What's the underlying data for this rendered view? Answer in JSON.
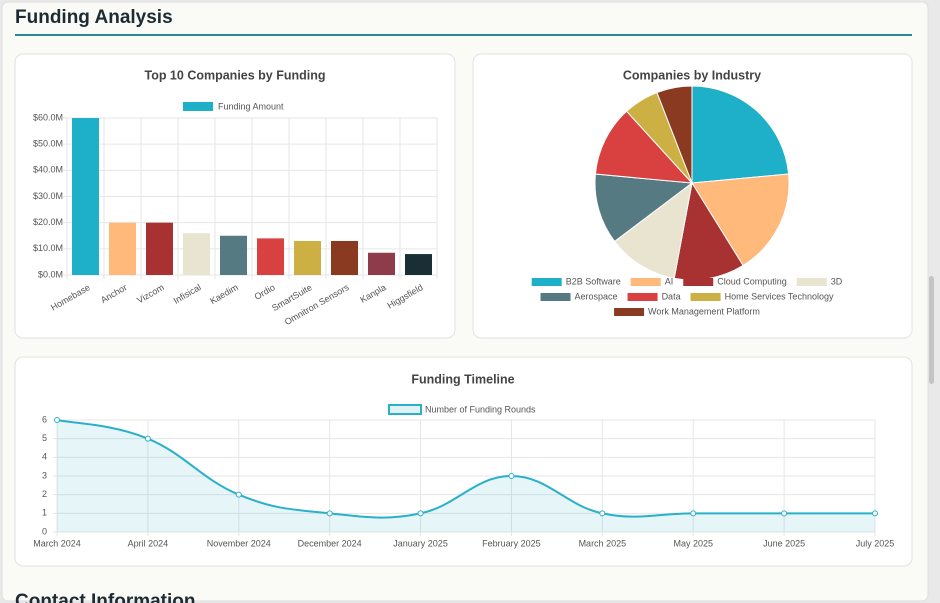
{
  "header": {
    "title": "Funding Analysis"
  },
  "chart_data": [
    {
      "type": "bar",
      "title": "Top 10 Companies by Funding",
      "categories": [
        "Homebase",
        "Anchor",
        "Vizcom",
        "Infisical",
        "Kaedim",
        "Ordio",
        "SmartSuite",
        "Omnitron Sensors",
        "Kanpla",
        "Higgsfield"
      ],
      "series": [
        {
          "name": "Funding Amount",
          "color": "#1fb0c9",
          "colors": [
            "#1fb0c9",
            "#ffb97a",
            "#a83232",
            "#e8e4d0",
            "#567a82",
            "#d94040",
            "#cdb043",
            "#8b3a22",
            "#8e3b4b",
            "#1a2e35"
          ],
          "values": [
            60000000,
            20000000,
            20000000,
            16000000,
            15000000,
            14000000,
            13000000,
            13000000,
            8500000,
            8000000
          ]
        }
      ],
      "ylim": [
        0,
        60000000
      ],
      "yticks": [
        {
          "value": 0,
          "label": "$0.0M"
        },
        {
          "value": 10000000,
          "label": "$10.0M"
        },
        {
          "value": 20000000,
          "label": "$20.0M"
        },
        {
          "value": 30000000,
          "label": "$30.0M"
        },
        {
          "value": 40000000,
          "label": "$40.0M"
        },
        {
          "value": 50000000,
          "label": "$50.0M"
        },
        {
          "value": 60000000,
          "label": "$60.0M"
        }
      ],
      "grid": true
    },
    {
      "type": "pie",
      "title": "Companies by Industry",
      "categories": [
        "B2B Software",
        "AI",
        "Cloud Computing",
        "3D",
        "Aerospace",
        "Data",
        "Home Services Technology",
        "Work Management Platform"
      ],
      "values": [
        4,
        3,
        2,
        2,
        2,
        2,
        1,
        1
      ],
      "colors": [
        "#1fb0c9",
        "#ffb97a",
        "#a83232",
        "#e8e4d0",
        "#567a82",
        "#d94040",
        "#cdb043",
        "#8b3a22"
      ]
    },
    {
      "type": "line",
      "title": "Funding Timeline",
      "categories": [
        "March 2024",
        "April 2024",
        "November 2024",
        "December 2024",
        "January 2025",
        "February 2025",
        "March 2025",
        "May 2025",
        "June 2025",
        "July 2025"
      ],
      "series": [
        {
          "name": "Number of Funding Rounds",
          "color": "#2ab0c9",
          "values": [
            6,
            5,
            2,
            1,
            1,
            3,
            1,
            1,
            1,
            1
          ]
        }
      ],
      "ylim": [
        0,
        6
      ],
      "yticks": [
        0,
        1,
        2,
        3,
        4,
        5,
        6
      ],
      "grid": true
    }
  ],
  "footer": {
    "title": "Contact Information"
  }
}
